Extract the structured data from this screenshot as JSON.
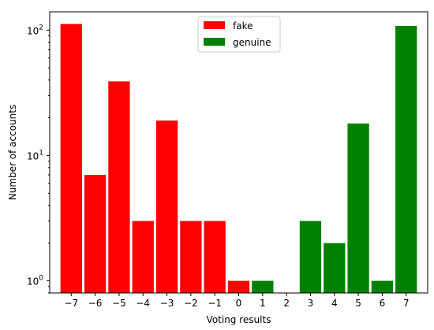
{
  "chart_data": {
    "type": "bar",
    "xlabel": "Voting results",
    "ylabel": "Number of accounts",
    "yscale": "log",
    "ylim": [
      0.8,
      140
    ],
    "xlim": [
      -7.9,
      7.9
    ],
    "xticks": [
      -7,
      -6,
      -5,
      -4,
      -3,
      -2,
      -1,
      0,
      1,
      2,
      3,
      4,
      5,
      6,
      7
    ],
    "xtick_labels": [
      "−7",
      "−6",
      "−5",
      "−4",
      "−3",
      "−2",
      "−1",
      "0",
      "1",
      "2",
      "3",
      "4",
      "5",
      "6",
      "7"
    ],
    "yticks": [
      1,
      10,
      100
    ],
    "grid": false,
    "legend": {
      "placement": "top-center"
    },
    "series": [
      {
        "name": "fake",
        "color": "#ff0000",
        "x": [
          -7,
          -6,
          -5,
          -4,
          -3,
          -2,
          -1,
          0
        ],
        "values": [
          112,
          7,
          39,
          3,
          19,
          3,
          3,
          1
        ]
      },
      {
        "name": "genuine",
        "color": "#008000",
        "x": [
          1,
          3,
          4,
          5,
          6,
          7
        ],
        "values": [
          1,
          3,
          2,
          18,
          1,
          108
        ]
      }
    ]
  }
}
